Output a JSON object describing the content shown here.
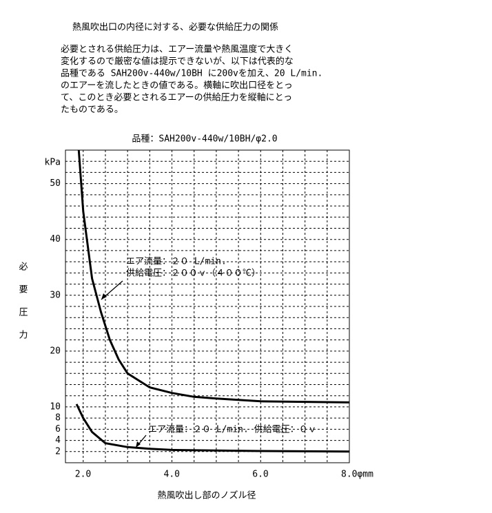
{
  "header": {
    "title": "熱風吹出口の内径に対する、必要な供給圧力の関係",
    "paragraph": [
      "必要とされる供給圧力は、エアー流量や熱風温度で大きく",
      "変化するので厳密な値は提示できないが、以下は代表的な",
      "品種である SAH200v-440w/10BH に200vを加え、20 L/min.",
      "のエアーを流したときの値である。横軸に吹出口径をとっ",
      "て、このとき必要とされるエアーの供給圧力を縦軸にとっ",
      "たものである。"
    ]
  },
  "chart_data": {
    "type": "line",
    "title": "品種：SAH200v-440w/10BH/φ2.0",
    "x_label": "熱風吹出し部のノズル径",
    "y_label": "必要圧力",
    "y_unit": "kPa",
    "xlim": [
      1.6,
      8.0
    ],
    "ylim": [
      0,
      56
    ],
    "xticks": [
      {
        "value": 2,
        "label": "2.0"
      },
      {
        "value": 4,
        "label": "4.0"
      },
      {
        "value": 6,
        "label": "6.0"
      },
      {
        "value": 8,
        "label": "8.0φmm"
      }
    ],
    "yticks": [
      2,
      4,
      6,
      8,
      10,
      20,
      30,
      40,
      50
    ],
    "xminorticks": [
      2.5,
      3,
      3.5,
      4.5,
      5,
      5.5,
      6.5,
      7,
      7.5
    ],
    "yminorticks": [
      12,
      14,
      16,
      18,
      22,
      24,
      26,
      28,
      32,
      34,
      36,
      38,
      42,
      44,
      46,
      48,
      52,
      54
    ],
    "grid": true,
    "series": [
      {
        "color": "#000000",
        "x": [
          1.9,
          2.0,
          2.2,
          2.4,
          2.6,
          2.8,
          3.0,
          3.5,
          4.0,
          4.5,
          5.0,
          6.0,
          7.0,
          8.0
        ],
        "values": [
          56,
          45,
          33,
          27,
          22,
          18.5,
          16,
          13.5,
          12.5,
          11.8,
          11.5,
          11,
          10.9,
          10.8
        ]
      },
      {
        "color": "#000000",
        "x": [
          1.85,
          2.0,
          2.2,
          2.5,
          3.0,
          3.5,
          4.0,
          5.0,
          6.0,
          8.0
        ],
        "values": [
          10.5,
          8,
          5.5,
          3.5,
          2.8,
          2.5,
          2.3,
          2.2,
          2.1,
          2.0
        ]
      }
    ],
    "annotations": [
      {
        "lines": [
          "エア流量：２０ L/min.",
          "供給電圧：２００ｖ（４００℃）"
        ]
      },
      {
        "lines": [
          "エア流量：２０ L/min. 供給電圧：０ｖ"
        ]
      }
    ]
  }
}
